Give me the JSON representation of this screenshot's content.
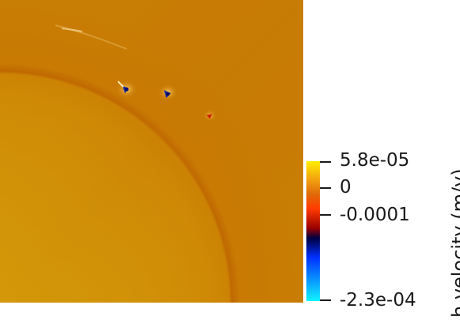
{
  "viewport": {
    "field_description_colors": {
      "background_orange": "#c87d05",
      "far_field_orange": "#cc7a03",
      "inner_gold": "#d19a07",
      "front_ring": "#c16a02"
    },
    "features": [
      "small-dipole-1",
      "small-dipole-2",
      "small-dipole-3",
      "edge-streak"
    ]
  },
  "colorbar": {
    "title": "h velocity (m/y)",
    "range": [
      -0.00023,
      5.8e-05
    ],
    "ticks": [
      {
        "label": "5.8e-05",
        "value": 5.8e-05
      },
      {
        "label": "0",
        "value": 0
      },
      {
        "label": "-0.0001",
        "value": -0.0001
      },
      {
        "label": "-2.3e-04",
        "value": -0.00023
      }
    ],
    "stops": [
      {
        "value": 5.8e-05,
        "color": "#ffee00"
      },
      {
        "value": 2e-05,
        "color": "#f2a10f"
      },
      {
        "value": -1e-05,
        "color": "#e06a08"
      },
      {
        "value": -4e-05,
        "color": "#ff3a00"
      },
      {
        "value": -8e-05,
        "color": "#9a0000"
      },
      {
        "value": -0.0001,
        "color": "#000040"
      },
      {
        "value": -0.00014,
        "color": "#0030ff"
      },
      {
        "value": -0.00023,
        "color": "#10f4ff"
      }
    ]
  }
}
